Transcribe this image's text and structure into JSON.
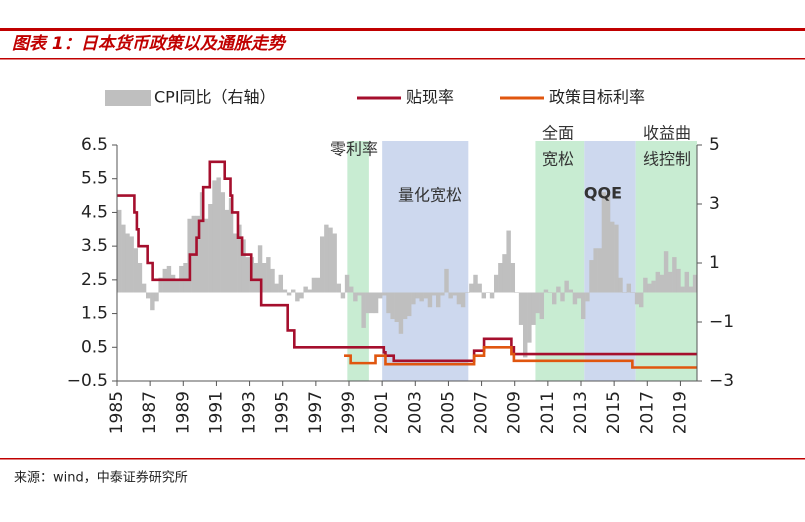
{
  "header": {
    "title": "图表 1：日本货币政策以及通胀走势"
  },
  "chart_data": {
    "type": "combo",
    "xlim": [
      1985,
      2020
    ],
    "xticks": [
      1985,
      1987,
      1989,
      1991,
      1993,
      1995,
      1997,
      1999,
      2001,
      2003,
      2005,
      2007,
      2009,
      2011,
      2013,
      2015,
      2017,
      2019
    ],
    "ylim": [
      -0.5,
      6.5
    ],
    "yticks": [
      6.5,
      5.5,
      4.5,
      3.5,
      2.5,
      1.5,
      0.5,
      {
        "value": -0.5,
        "label": "−0.5"
      }
    ],
    "y2lim": [
      -3,
      5
    ],
    "y2ticks": [
      5,
      3,
      1,
      {
        "value": -1,
        "label": "−1"
      },
      {
        "value": -3,
        "label": "−3"
      }
    ],
    "regions": [
      {
        "label": [
          "零利率"
        ],
        "start": 1998.9,
        "end": 2000.2,
        "color": "#c8ecd2"
      },
      {
        "label": [
          "量化宽松"
        ],
        "start": 2001.0,
        "end": 2006.2,
        "color": "#cdd8ee"
      },
      {
        "label": [
          "全面",
          "宽松"
        ],
        "start": 2010.25,
        "end": 2013.2,
        "color": "#c8ecd2"
      },
      {
        "label": [
          "QQE"
        ],
        "start": 2013.2,
        "end": 2016.3,
        "color": "#cdd8ee"
      },
      {
        "label": [
          "收益曲",
          "线控制"
        ],
        "start": 2016.3,
        "end": 2020,
        "color": "#c8ecd2"
      }
    ],
    "series": [
      {
        "name": "CPI同比（右轴）",
        "type": "bar",
        "axis": "y2",
        "color": "#bfbfbf",
        "x": [
          1985,
          1985.25,
          1985.5,
          1985.75,
          1986,
          1986.25,
          1986.5,
          1986.75,
          1987,
          1987.25,
          1987.5,
          1987.75,
          1988,
          1988.25,
          1988.5,
          1988.75,
          1989,
          1989.25,
          1989.5,
          1989.75,
          1990,
          1990.25,
          1990.5,
          1990.75,
          1991,
          1991.25,
          1991.5,
          1991.75,
          1992,
          1992.25,
          1992.5,
          1992.75,
          1993,
          1993.25,
          1993.5,
          1993.75,
          1994,
          1994.25,
          1994.5,
          1994.75,
          1995,
          1995.25,
          1995.5,
          1995.75,
          1996,
          1996.25,
          1996.5,
          1996.75,
          1997,
          1997.25,
          1997.5,
          1997.75,
          1998,
          1998.25,
          1998.5,
          1998.75,
          1999,
          1999.25,
          1999.5,
          1999.75,
          2000,
          2000.25,
          2000.5,
          2000.75,
          2001,
          2001.25,
          2001.5,
          2001.75,
          2002,
          2002.25,
          2002.5,
          2002.75,
          2003,
          2003.25,
          2003.5,
          2003.75,
          2004,
          2004.25,
          2004.5,
          2004.75,
          2005,
          2005.25,
          2005.5,
          2005.75,
          2006,
          2006.25,
          2006.5,
          2006.75,
          2007,
          2007.25,
          2007.5,
          2007.75,
          2008,
          2008.25,
          2008.5,
          2008.75,
          2009,
          2009.25,
          2009.5,
          2009.75,
          2010,
          2010.25,
          2010.5,
          2010.75,
          2011,
          2011.25,
          2011.5,
          2011.75,
          2012,
          2012.25,
          2012.5,
          2012.75,
          2013,
          2013.25,
          2013.5,
          2013.75,
          2014,
          2014.25,
          2014.5,
          2014.75,
          2015,
          2015.25,
          2015.5,
          2015.75,
          2016,
          2016.25,
          2016.5,
          2016.75,
          2017,
          2017.25,
          2017.5,
          2017.75,
          2018,
          2018.25,
          2018.5,
          2018.75,
          2019,
          2019.25,
          2019.5,
          2019.75
        ],
        "values": [
          2.8,
          2.3,
          2.0,
          1.9,
          1.5,
          1.0,
          0.3,
          -0.2,
          -0.6,
          -0.3,
          0.5,
          0.8,
          0.9,
          0.6,
          0.4,
          0.9,
          1.0,
          2.5,
          2.6,
          2.6,
          3.4,
          2.5,
          3.0,
          3.8,
          3.9,
          3.4,
          2.8,
          3.2,
          2.0,
          2.3,
          1.8,
          1.2,
          1.2,
          1.0,
          1.6,
          1.0,
          1.2,
          0.8,
          0.3,
          0.6,
          0.1,
          -0.1,
          0.1,
          -0.3,
          -0.2,
          0.2,
          0.1,
          0.5,
          0.5,
          1.9,
          2.3,
          2.2,
          2.0,
          0.3,
          -0.2,
          0.6,
          0.2,
          -0.3,
          -0.1,
          -1.2,
          -0.7,
          -0.7,
          -0.7,
          -0.2,
          -0.1,
          -0.7,
          -0.9,
          -1.0,
          -1.4,
          -0.9,
          -0.8,
          -0.4,
          -0.2,
          -0.3,
          -0.2,
          -0.5,
          -0.1,
          -0.5,
          -0.1,
          0.8,
          -0.2,
          -0.1,
          -0.4,
          -0.5,
          0.0,
          0.3,
          0.6,
          0.3,
          -0.2,
          0.0,
          -0.2,
          0.6,
          1.0,
          1.3,
          2.1,
          1.0,
          0.0,
          -1.1,
          -2.2,
          -1.7,
          -1.1,
          -0.7,
          -0.9,
          0.1,
          0.0,
          -0.4,
          0.2,
          -0.3,
          0.4,
          0.1,
          -0.4,
          -0.2,
          -0.9,
          -0.3,
          1.1,
          1.5,
          1.5,
          3.4,
          3.3,
          2.4,
          2.3,
          0.5,
          0.0,
          0.3,
          0.0,
          -0.4,
          -0.5,
          0.5,
          0.3,
          0.4,
          0.7,
          0.6,
          1.4,
          0.7,
          1.2,
          0.8,
          0.2,
          0.7,
          0.2,
          0.6
        ]
      },
      {
        "name": "贴现率",
        "type": "line",
        "color": "#a50f2d",
        "x": [
          1985,
          1986.05,
          1986.05,
          1986.2,
          1986.2,
          1986.3,
          1986.3,
          1986.85,
          1986.85,
          1987.15,
          1987.15,
          1989.4,
          1989.4,
          1989.8,
          1989.8,
          1989.95,
          1989.95,
          1990.2,
          1990.2,
          1990.6,
          1990.6,
          1991.5,
          1991.5,
          1991.85,
          1991.85,
          1991.95,
          1991.95,
          1992.3,
          1992.3,
          1992.55,
          1992.55,
          1993.1,
          1993.1,
          1993.7,
          1993.7,
          1995.3,
          1995.3,
          1995.7,
          1995.7,
          2001.1,
          2001.1,
          2001.2,
          2001.2,
          2001.7,
          2001.7,
          2006.55,
          2006.55,
          2007.15,
          2007.15,
          2008.8,
          2008.8,
          2008.95,
          2008.95,
          2020
        ],
        "values": [
          5.0,
          5.0,
          4.5,
          4.5,
          4.0,
          4.0,
          3.5,
          3.5,
          3.0,
          3.0,
          2.5,
          2.5,
          3.25,
          3.25,
          3.75,
          3.75,
          4.25,
          4.25,
          5.25,
          5.25,
          6.0,
          6.0,
          5.5,
          5.5,
          5.0,
          5.0,
          4.5,
          4.5,
          3.75,
          3.75,
          3.25,
          3.25,
          2.5,
          2.5,
          1.75,
          1.75,
          1.0,
          1.0,
          0.5,
          0.5,
          0.35,
          0.35,
          0.25,
          0.25,
          0.1,
          0.1,
          0.4,
          0.4,
          0.75,
          0.75,
          0.5,
          0.5,
          0.3,
          0.3
        ]
      },
      {
        "name": "政策目标利率",
        "type": "line",
        "color": "#e0560f",
        "x": [
          1998.7,
          1999.1,
          1999.1,
          2000.6,
          2000.6,
          2001.2,
          2001.2,
          2006.55,
          2006.55,
          2007.15,
          2007.15,
          2008.8,
          2008.8,
          2008.95,
          2008.95,
          2016.1,
          2016.1,
          2020
        ],
        "values": [
          0.25,
          0.25,
          0.03,
          0.03,
          0.25,
          0.25,
          0.0,
          0.0,
          0.25,
          0.25,
          0.5,
          0.5,
          0.3,
          0.3,
          0.1,
          0.1,
          -0.1,
          -0.1
        ]
      }
    ]
  },
  "footer": {
    "source": "来源：wind，中泰证券研究所"
  }
}
